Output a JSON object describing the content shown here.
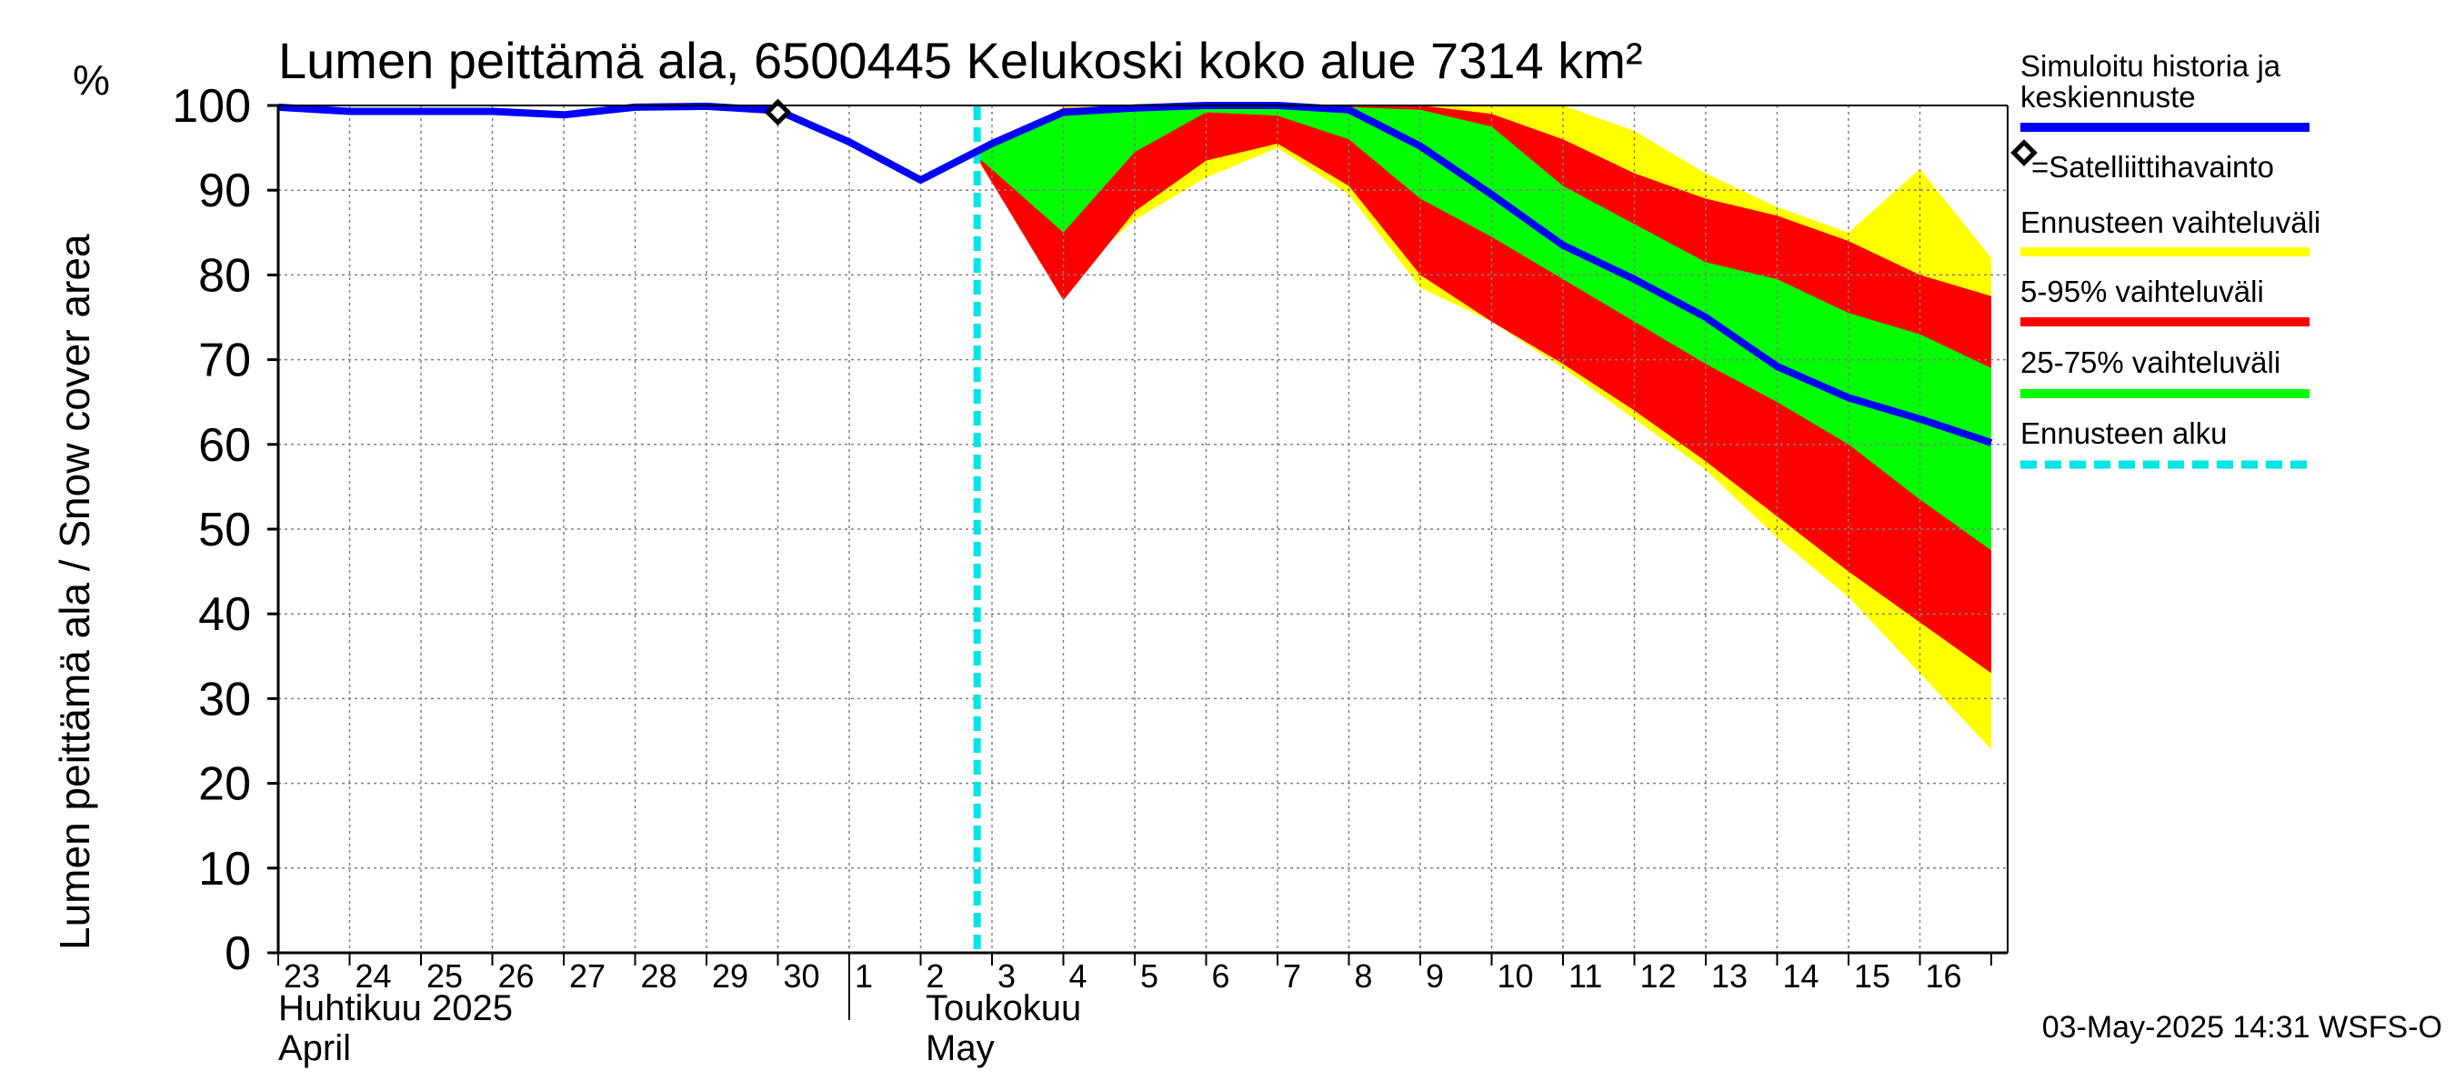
{
  "chart_data": {
    "type": "area",
    "title": "Lumen peittämä ala, 6500445 Kelukoski koko alue 7314 km²",
    "ylabel": "Lumen peittämä ala / Snow cover area",
    "yunit": "%",
    "ylim": [
      0,
      100
    ],
    "yticks": [
      0,
      10,
      20,
      30,
      40,
      50,
      60,
      70,
      80,
      90,
      100
    ],
    "grid": true,
    "x_day_labels": [
      "23",
      "24",
      "25",
      "26",
      "27",
      "28",
      "29",
      "30",
      "1",
      "2",
      "3",
      "4",
      "5",
      "6",
      "7",
      "8",
      "9",
      "10",
      "11",
      "12",
      "13",
      "14",
      "15",
      "16"
    ],
    "month_labels": [
      {
        "fi": "Huhtikuu  2025",
        "en": "April"
      },
      {
        "fi": "Toukokuu",
        "en": "May"
      }
    ],
    "forecast_start": "2025-05-02 19:00",
    "observation": {
      "date": "2025-04-30",
      "value": 99.2
    },
    "series": [
      {
        "name": "Simuloitu historia ja keskiennuste",
        "color": "#0000ff",
        "x": [
          "2025-04-23",
          "2025-04-24",
          "2025-04-25",
          "2025-04-26",
          "2025-04-27",
          "2025-04-28",
          "2025-04-29",
          "2025-04-30",
          "2025-05-01",
          "2025-05-02",
          "2025-05-03",
          "2025-05-04",
          "2025-05-05",
          "2025-05-06",
          "2025-05-07",
          "2025-05-08",
          "2025-05-09",
          "2025-05-10",
          "2025-05-11",
          "2025-05-12",
          "2025-05-13",
          "2025-05-14",
          "2025-05-15",
          "2025-05-16",
          "2025-05-17"
        ],
        "values": [
          99.8,
          99.3,
          99.3,
          99.3,
          98.9,
          99.8,
          99.9,
          99.4,
          95.7,
          91.2,
          95.5,
          99.2,
          99.7,
          100,
          100,
          99.5,
          95.2,
          89.5,
          83.5,
          79.5,
          75,
          69.2,
          65.5,
          63,
          60.2
        ]
      },
      {
        "name": "Ennusteen vaihteluväli",
        "color": "#ffff00",
        "x": [
          "2025-05-02 19:00",
          "2025-05-04",
          "2025-05-05",
          "2025-05-06",
          "2025-05-07",
          "2025-05-08",
          "2025-05-09",
          "2025-05-10",
          "2025-05-11",
          "2025-05-12",
          "2025-05-13",
          "2025-05-14",
          "2025-05-15",
          "2025-05-16",
          "2025-05-17"
        ],
        "upper": [
          94.5,
          99.8,
          100,
          100,
          100,
          100,
          100,
          100,
          100,
          97,
          92,
          88,
          85,
          92.5,
          82
        ],
        "lower": [
          93.5,
          79,
          86.5,
          91.5,
          95,
          89.5,
          78.5,
          74.5,
          69,
          63,
          57,
          49,
          42,
          33,
          24
        ]
      },
      {
        "name": "5-95% vaihteluväli",
        "color": "#ff0000",
        "x": [
          "2025-05-02 19:00",
          "2025-05-04",
          "2025-05-05",
          "2025-05-06",
          "2025-05-07",
          "2025-05-08",
          "2025-05-09",
          "2025-05-10",
          "2025-05-11",
          "2025-05-12",
          "2025-05-13",
          "2025-05-14",
          "2025-05-15",
          "2025-05-16",
          "2025-05-17"
        ],
        "upper": [
          94.5,
          99.7,
          99.9,
          100,
          100,
          100,
          100,
          99,
          96,
          92,
          89,
          87,
          84,
          80,
          77.5
        ],
        "lower": [
          93.8,
          77,
          87.5,
          93.5,
          95.5,
          90.5,
          80,
          74.5,
          69.5,
          64,
          58,
          51.5,
          45,
          39,
          33
        ]
      },
      {
        "name": "25-75% vaihteluväli",
        "color": "#00ff00",
        "x": [
          "2025-05-02 19:00",
          "2025-05-04",
          "2025-05-05",
          "2025-05-06",
          "2025-05-07",
          "2025-05-08",
          "2025-05-09",
          "2025-05-10",
          "2025-05-11",
          "2025-05-12",
          "2025-05-13",
          "2025-05-14",
          "2025-05-15",
          "2025-05-16",
          "2025-05-17"
        ],
        "upper": [
          94.2,
          99.2,
          99.8,
          100,
          100,
          99.8,
          99.5,
          97.5,
          90.5,
          86,
          81.5,
          79.5,
          75.5,
          73,
          69
        ],
        "lower": [
          94,
          85,
          94.5,
          99.2,
          98.8,
          96,
          89,
          84.5,
          79.5,
          74.5,
          69.5,
          65,
          60,
          53.5,
          47.5
        ]
      }
    ]
  },
  "legend": {
    "median": "Simuloitu historia ja\nkeskiennuste",
    "observation": "=Satelliittihavainto",
    "range": "Ennusteen vaihteluväli",
    "p5_95": "5-95% vaihteluväli",
    "p25_75": "25-75% vaihteluväli",
    "forecast_start": "Ennusteen alku"
  },
  "colors": {
    "median": "#0000ff",
    "range": "#ffff00",
    "p5_95": "#ff0000",
    "p25_75": "#00ff00",
    "forecast_start": "#00e5e5",
    "grid": "#808080"
  },
  "footer": "03-May-2025 14:31 WSFS-O"
}
